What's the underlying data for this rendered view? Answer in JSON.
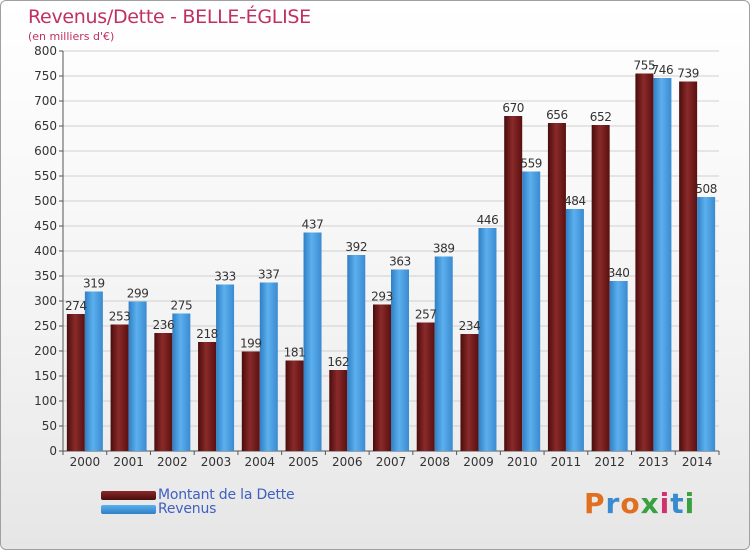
{
  "chart_data": {
    "type": "bar",
    "title": "Revenus/Dette - BELLE-ÉGLISE",
    "subtitle": "(en milliers d'€)",
    "categories": [
      "2000",
      "2001",
      "2002",
      "2003",
      "2004",
      "2005",
      "2006",
      "2007",
      "2008",
      "2009",
      "2010",
      "2011",
      "2012",
      "2013",
      "2014"
    ],
    "series": [
      {
        "name": "Montant de la Dette",
        "color": "#7a1e1e",
        "values": [
          274,
          253,
          236,
          218,
          199,
          181,
          162,
          293,
          257,
          234,
          670,
          656,
          652,
          755,
          739
        ]
      },
      {
        "name": "Revenus",
        "color": "#3d97da",
        "values": [
          319,
          299,
          275,
          333,
          337,
          437,
          392,
          363,
          389,
          446,
          559,
          484,
          340,
          746,
          508
        ]
      }
    ],
    "ylim": [
      0,
      800
    ],
    "yticks": [
      0,
      50,
      100,
      150,
      200,
      250,
      300,
      350,
      400,
      450,
      500,
      550,
      600,
      650,
      700,
      750,
      800
    ],
    "grid": true,
    "legend_position": "bottom-left"
  },
  "brand": {
    "text": "Proxiti",
    "colors": [
      "#e07020",
      "#3a8ad0",
      "#e07020",
      "#3aa040",
      "#d03070",
      "#3a8ad0",
      "#3aa040"
    ]
  }
}
